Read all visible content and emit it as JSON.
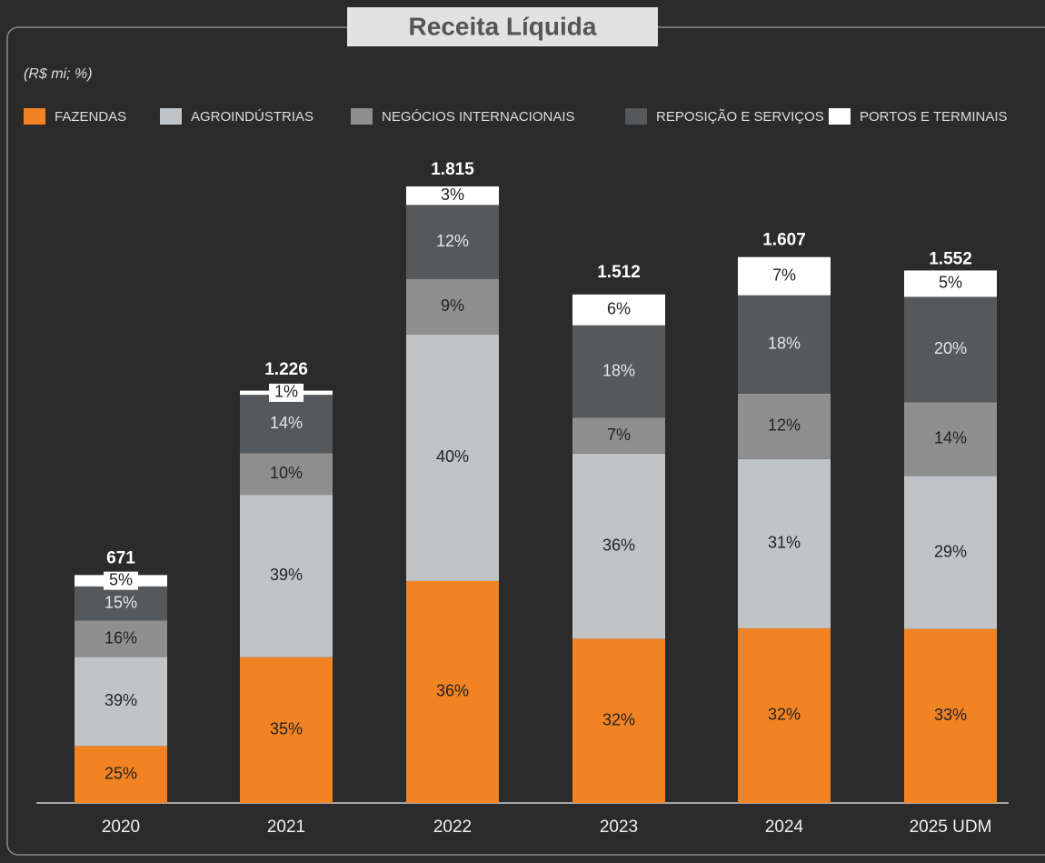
{
  "chart_data": {
    "type": "stacked_bar",
    "title": "Receita Líquida",
    "subtitle": "(R$ mi; %)",
    "categories": [
      "2020",
      "2021",
      "2022",
      "2023",
      "2024",
      "2025 UDM"
    ],
    "totals": {
      "values": [
        671,
        1226,
        1815,
        1512,
        1607,
        1552
      ],
      "value_labels": [
        "671",
        "1.226",
        "1.815",
        "1.512",
        "1.607",
        "1.552"
      ]
    },
    "series": [
      {
        "name": "FAZENDAS",
        "color": "#f28322",
        "values": [
          25,
          35,
          36,
          32,
          32,
          33
        ],
        "value_labels": [
          "25%",
          "35%",
          "36%",
          "32%",
          "32%",
          "33%"
        ]
      },
      {
        "name": "AGROINDÚSTRIAS",
        "color": "#c1c4c7",
        "values": [
          39,
          39,
          40,
          36,
          31,
          29
        ],
        "value_labels": [
          "39%",
          "39%",
          "40%",
          "36%",
          "31%",
          "29%"
        ]
      },
      {
        "name": "NEGÓCIOS INTERNACIONAIS",
        "color": "#8f8f8f",
        "values": [
          16,
          10,
          9,
          7,
          12,
          14
        ],
        "value_labels": [
          "16%",
          "10%",
          "9%",
          "7%",
          "12%",
          "14%"
        ]
      },
      {
        "name": "REPOSIÇÃO E SERVIÇOS",
        "color": "#56595b",
        "values": [
          15,
          14,
          12,
          18,
          18,
          20
        ],
        "value_labels": [
          "15%",
          "14%",
          "12%",
          "18%",
          "18%",
          "20%"
        ]
      },
      {
        "name": "PORTOS E TERMINAIS",
        "color": "#ffffff",
        "values": [
          5,
          1,
          3,
          6,
          7,
          5
        ],
        "value_labels": [
          "5%",
          "1%",
          "3%",
          "6%",
          "7%",
          "5%"
        ]
      }
    ]
  }
}
